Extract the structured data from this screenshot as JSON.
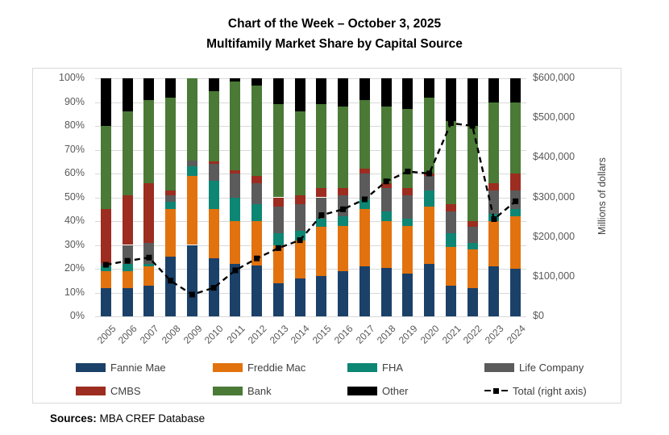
{
  "title": {
    "line1": "Chart of the Week – October 3, 2025",
    "line2": "Multifamily Market Share by Capital Source"
  },
  "sources": {
    "label": "Sources:",
    "text": " MBA CREF Database"
  },
  "chart_data": {
    "type": "bar",
    "subtype": "100%-stacked-bar-with-total-line",
    "categories": [
      "2005",
      "2006",
      "2007",
      "2008",
      "2009",
      "2010",
      "2011",
      "2012",
      "2013",
      "2014",
      "2015",
      "2016",
      "2017",
      "2018",
      "2019",
      "2020",
      "2021",
      "2022",
      "2023",
      "2024"
    ],
    "stack_unit": "percent of total",
    "series": [
      {
        "name": "Fannie Mae",
        "color": "#1b4169",
        "values": [
          12,
          12,
          13,
          25,
          30,
          24.5,
          22,
          21.5,
          14,
          16,
          17,
          19,
          21,
          20.5,
          18,
          22,
          13,
          12,
          21,
          20
        ]
      },
      {
        "name": "Freddie Mac",
        "color": "#e2720e",
        "values": [
          7,
          7,
          8,
          20,
          29,
          20.5,
          18,
          18.5,
          16,
          16,
          20.5,
          19,
          24,
          19.5,
          20,
          24,
          16,
          16,
          19,
          22
        ]
      },
      {
        "name": "FHA",
        "color": "#0e8674",
        "values": [
          2,
          3,
          1,
          3,
          4,
          12,
          10,
          7,
          5,
          4,
          3.5,
          4,
          4,
          4,
          3,
          7,
          6,
          3,
          3,
          3
        ]
      },
      {
        "name": "Life Company",
        "color": "#5b5b5b",
        "values": [
          1.5,
          8,
          9,
          3,
          2.5,
          7,
          10,
          9,
          11,
          11,
          9,
          9,
          11,
          10,
          10,
          6,
          9,
          6.5,
          10,
          8
        ]
      },
      {
        "name": "CMBS",
        "color": "#9c2d20",
        "values": [
          22.5,
          21,
          25,
          2,
          0,
          1,
          1.5,
          3,
          4,
          4,
          4,
          3,
          2,
          2,
          3,
          1,
          3,
          2.5,
          3,
          7
        ]
      },
      {
        "name": "Bank",
        "color": "#4a7a36",
        "values": [
          35,
          35,
          35,
          39,
          34.5,
          29.5,
          37,
          38,
          39,
          35,
          35,
          34,
          29,
          32,
          33,
          32,
          35,
          40,
          34,
          30
        ]
      },
      {
        "name": "Other",
        "color": "#000000",
        "values": [
          20,
          14,
          9,
          8,
          0,
          5.5,
          1.5,
          3,
          11,
          14,
          11,
          12,
          9,
          12,
          13,
          8,
          18,
          20,
          10,
          10
        ]
      }
    ],
    "line_series": {
      "name": "Total (right axis)",
      "color": "#000000",
      "style": "dashed line with square markers",
      "values": [
        130000,
        140000,
        148000,
        90000,
        55000,
        72000,
        116000,
        146000,
        172000,
        192000,
        255000,
        270000,
        295000,
        340000,
        365000,
        360000,
        487000,
        480000,
        245000,
        290000
      ]
    },
    "left_axis": {
      "min": 0,
      "max": 100,
      "ticks": [
        "0%",
        "10%",
        "20%",
        "30%",
        "40%",
        "50%",
        "60%",
        "70%",
        "80%",
        "90%",
        "100%"
      ]
    },
    "right_axis": {
      "min": 0,
      "max": 600000,
      "label": "Millions of dollars",
      "ticks": [
        "$0",
        "$100,000",
        "$200,000",
        "$300,000",
        "$400,000",
        "$500,000",
        "$600,000"
      ]
    },
    "grid": true,
    "legend_position": "bottom"
  }
}
